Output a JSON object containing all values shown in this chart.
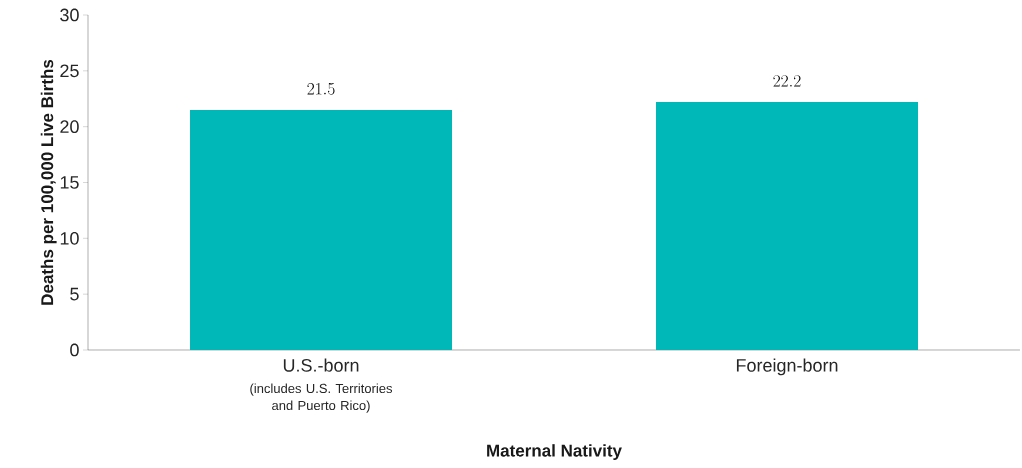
{
  "chart_data": {
    "type": "bar",
    "xlabel": "Maternal Nativity",
    "ylabel": "Deaths per 100,000 Live Births",
    "categories": [
      "U.S.-born",
      "Foreign-born"
    ],
    "values": [
      21.5,
      22.2
    ],
    "color": "#00b8b8",
    "ylim": [
      0,
      30
    ],
    "yticks": [
      0,
      5,
      10,
      15,
      20,
      25,
      30
    ],
    "grid": false,
    "data_labels": true,
    "annotations": [
      "(includes U.S. Territories and Puerto Rico)"
    ]
  }
}
